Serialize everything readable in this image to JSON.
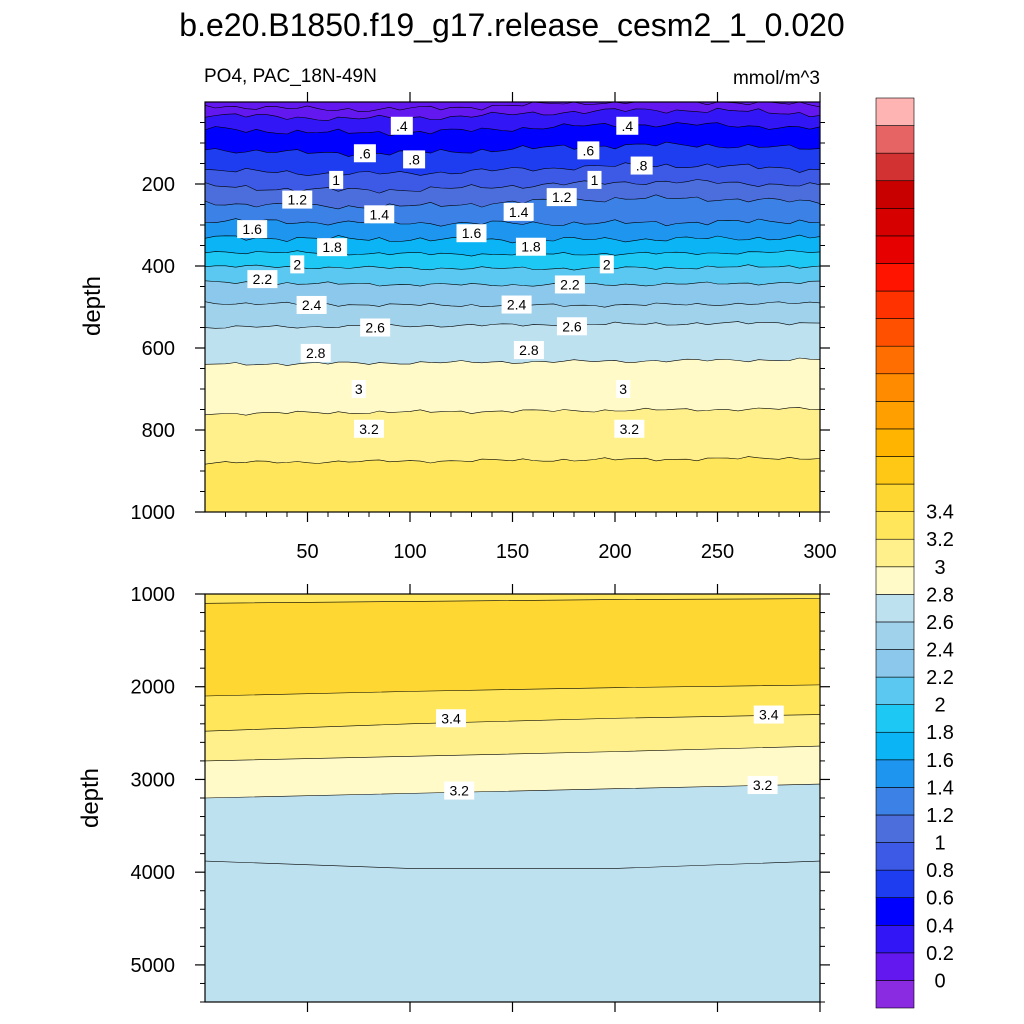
{
  "title": "b.e20.B1850.f19_g17.release_cesm2_1_0.020",
  "subtitle_left": "PO4, PAC_18N-49N",
  "subtitle_right": "mmol/m^3",
  "colorbar": {
    "colors": [
      "#8a2be2",
      "#6418f0",
      "#3216f5",
      "#0000ff",
      "#1e3cf0",
      "#3c5ae6",
      "#4b6edc",
      "#3c82e6",
      "#1e96f0",
      "#0ab4f5",
      "#1ec8f5",
      "#5ac8f0",
      "#8cc8eb",
      "#a0d2eb",
      "#bee1f0",
      "#fffac8",
      "#fff08c",
      "#ffe65a",
      "#ffd732",
      "#ffc814",
      "#ffb400",
      "#ffa000",
      "#ff8c00",
      "#ff6e00",
      "#ff5000",
      "#ff3200",
      "#ff1400",
      "#e60000",
      "#d70000",
      "#c80000",
      "#d23232",
      "#e66464",
      "#ffb4b4"
    ],
    "tick_labels": [
      "0",
      "0.2",
      "0.4",
      "0.6",
      "0.8",
      "1",
      "1.2",
      "1.4",
      "1.6",
      "1.8",
      "2",
      "2.2",
      "2.4",
      "2.6",
      "2.8",
      "3",
      "3.2",
      "3.4"
    ]
  },
  "chart_data": [
    {
      "type": "contour",
      "panel": "upper",
      "xlabel": "",
      "ylabel": "depth",
      "xlim": [
        0,
        300
      ],
      "ylim": [
        1000,
        0
      ],
      "x_ticks": [
        "50",
        "100",
        "150",
        "200",
        "250",
        "300"
      ],
      "y_ticks": [
        "200",
        "400",
        "600",
        "800",
        "1000"
      ],
      "levels": [
        0.2,
        0.4,
        0.6,
        0.8,
        1.0,
        1.2,
        1.4,
        1.6,
        1.8,
        2.0,
        2.2,
        2.4,
        2.6,
        2.8,
        3.0,
        3.2,
        3.4
      ],
      "level_depths": [
        8,
        30,
        65,
        115,
        165,
        205,
        245,
        290,
        330,
        365,
        400,
        440,
        490,
        550,
        640,
        760,
        880
      ],
      "contour_labels": [
        {
          "text": ".4",
          "x": 96,
          "d": 58
        },
        {
          "text": ".4",
          "x": 206,
          "d": 58
        },
        {
          "text": ".6",
          "x": 78,
          "d": 125
        },
        {
          "text": ".6",
          "x": 187,
          "d": 118
        },
        {
          "text": ".8",
          "x": 102,
          "d": 140
        },
        {
          "text": ".8",
          "x": 213,
          "d": 155
        },
        {
          "text": "1",
          "x": 64,
          "d": 190
        },
        {
          "text": "1",
          "x": 190,
          "d": 190
        },
        {
          "text": "1.2",
          "x": 45,
          "d": 238
        },
        {
          "text": "1.2",
          "x": 174,
          "d": 232
        },
        {
          "text": "1.4",
          "x": 85,
          "d": 274
        },
        {
          "text": "1.4",
          "x": 153,
          "d": 268
        },
        {
          "text": "1.6",
          "x": 23,
          "d": 310
        },
        {
          "text": "1.6",
          "x": 130,
          "d": 320
        },
        {
          "text": "1.8",
          "x": 62,
          "d": 354
        },
        {
          "text": "1.8",
          "x": 159,
          "d": 353
        },
        {
          "text": "2",
          "x": 45,
          "d": 396
        },
        {
          "text": "2",
          "x": 196,
          "d": 396
        },
        {
          "text": "2.2",
          "x": 28,
          "d": 432
        },
        {
          "text": "2.2",
          "x": 178,
          "d": 445
        },
        {
          "text": "2.4",
          "x": 52,
          "d": 495
        },
        {
          "text": "2.4",
          "x": 152,
          "d": 494
        },
        {
          "text": "2.6",
          "x": 83,
          "d": 550
        },
        {
          "text": "2.6",
          "x": 179,
          "d": 547
        },
        {
          "text": "2.8",
          "x": 54,
          "d": 612
        },
        {
          "text": "2.8",
          "x": 158,
          "d": 605
        },
        {
          "text": "3",
          "x": 75,
          "d": 700
        },
        {
          "text": "3",
          "x": 204,
          "d": 700
        },
        {
          "text": "3.2",
          "x": 80,
          "d": 797
        },
        {
          "text": "3.2",
          "x": 207,
          "d": 797
        }
      ]
    },
    {
      "type": "contour",
      "panel": "lower",
      "xlabel": "",
      "ylabel": "depth",
      "xlim": [
        0,
        300
      ],
      "ylim": [
        5400,
        1000
      ],
      "y_ticks": [
        "1000",
        "2000",
        "3000",
        "4000",
        "5000"
      ],
      "level_curves": [
        {
          "level": 3.4,
          "edge": "top",
          "depths": [
            1100,
            1080,
            1060,
            1050
          ]
        },
        {
          "level": 3.4,
          "edge": "bottom",
          "depths": [
            2100,
            2050,
            2010,
            1980
          ]
        },
        {
          "level": 3.4,
          "edge": "lower",
          "depths": [
            2480,
            2400,
            2340,
            2300
          ]
        },
        {
          "level": 3.2,
          "edge": "top",
          "depths": [
            2800,
            2750,
            2700,
            2640
          ]
        },
        {
          "level": 3.2,
          "edge": "bottom",
          "depths": [
            3200,
            3150,
            3100,
            3050
          ]
        },
        {
          "level": 3.0,
          "edge": "top",
          "depths": [
            3880,
            3960,
            3960,
            3880
          ]
        }
      ],
      "contour_labels": [
        {
          "text": "3.4",
          "x": 120,
          "d": 2340
        },
        {
          "text": "3.4",
          "x": 275,
          "d": 2300
        },
        {
          "text": "3.2",
          "x": 124,
          "d": 3120
        },
        {
          "text": "3.2",
          "x": 272,
          "d": 3060
        }
      ]
    }
  ]
}
